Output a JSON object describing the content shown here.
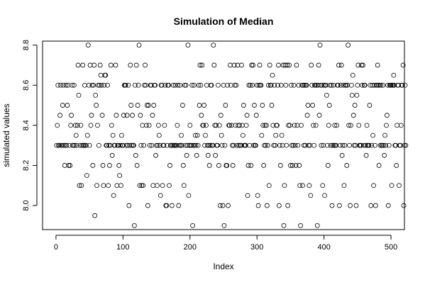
{
  "chart_data": {
    "type": "scatter",
    "title": "Simulation of Median",
    "xlabel": "Index",
    "ylabel": "simulated values",
    "xlim": [
      -20,
      520
    ],
    "ylim": [
      7.88,
      8.82
    ],
    "x_ticks": [
      0,
      100,
      200,
      300,
      400,
      500
    ],
    "y_ticks": [
      8.0,
      8.2,
      8.4,
      8.6,
      8.8
    ],
    "y_tick_labels": [
      "8.0",
      "8.2",
      "8.4",
      "8.6",
      "8.8"
    ],
    "grid": false,
    "marker": "open-circle",
    "n_points": 500,
    "series": [
      {
        "y": [
          8.3,
          8.4,
          8.6,
          8.3,
          8.3,
          8.45,
          8.6,
          8.3,
          8.3,
          8.5,
          8.6,
          8.3,
          8.2,
          8.3,
          8.6,
          8.3,
          8.5,
          8.6,
          8.2,
          8.3,
          8.2,
          8.4,
          8.45,
          8.6,
          8.3,
          8.3,
          8.6,
          8.3,
          8.4,
          8.35,
          8.3,
          8.4,
          8.7,
          8.55,
          8.1,
          8.3,
          8.4,
          8.1,
          8.3,
          8.7,
          8.3,
          8.3,
          8.6,
          8.3,
          8.3,
          8.15,
          8.35,
          8.8,
          8.6,
          8.3,
          8.7,
          8.4,
          8.45,
          8.6,
          8.2,
          8.6,
          8.7,
          7.95,
          8.55,
          8.5,
          8.1,
          8.4,
          8.6,
          8.3,
          8.6,
          8.7,
          8.65,
          8.6,
          8.45,
          8.2,
          8.1,
          8.6,
          8.65,
          8.65,
          8.3,
          8.3,
          8.6,
          8.1,
          8.3,
          8.2,
          8.3,
          8.7,
          8.4,
          8.25,
          8.35,
          8.05,
          8.3,
          8.3,
          8.7,
          8.45,
          8.1,
          8.3,
          8.3,
          8.2,
          8.15,
          8.3,
          8.1,
          8.35,
          8.3,
          8.3,
          8.45,
          8.6,
          8.6,
          8.6,
          8.3,
          8.45,
          8.3,
          8.6,
          8.0,
          8.3,
          8.7,
          8.5,
          8.3,
          8.45,
          8.3,
          8.3,
          7.9,
          8.6,
          8.25,
          8.7,
          8.2,
          8.5,
          8.6,
          8.8,
          8.1,
          8.45,
          8.3,
          8.1,
          8.4,
          8.1,
          8.3,
          8.6,
          8.7,
          8.6,
          8.4,
          8.5,
          8.0,
          8.5,
          8.4,
          8.3,
          8.6,
          8.6,
          8.3,
          8.45,
          8.1,
          8.5,
          8.6,
          8.6,
          8.25,
          8.3,
          8.1,
          8.3,
          8.4,
          8.35,
          8.3,
          8.05,
          8.6,
          8.6,
          8.1,
          8.3,
          8.3,
          8.4,
          8.6,
          8.0,
          8.0,
          8.3,
          8.6,
          8.6,
          8.1,
          8.2,
          8.3,
          8.3,
          8.0,
          8.3,
          8.6,
          8.3,
          8.3,
          8.6,
          8.3,
          8.3,
          8.4,
          8.6,
          8.0,
          8.3,
          8.6,
          8.3,
          8.35,
          8.3,
          8.5,
          8.2,
          8.1,
          8.6,
          8.3,
          8.6,
          8.25,
          8.3,
          8.8,
          8.05,
          8.3,
          8.4,
          8.3,
          8.3,
          8.6,
          7.9,
          8.3,
          8.6,
          8.3,
          8.35,
          8.3,
          8.25,
          8.35,
          8.3,
          8.6,
          8.5,
          8.7,
          8.6,
          8.45,
          8.7,
          8.4,
          8.4,
          8.5,
          8.3,
          8.35,
          8.4,
          8.6,
          8.3,
          8.25,
          8.3,
          8.2,
          8.3,
          8.6,
          8.6,
          8.3,
          8.3,
          8.8,
          8.7,
          8.4,
          8.25,
          8.4,
          8.3,
          8.3,
          8.6,
          8.2,
          8.4,
          8.0,
          8.45,
          8.35,
          8.3,
          8.0,
          8.6,
          7.9,
          8.3,
          8.5,
          8.2,
          8.2,
          8.6,
          8.0,
          8.4,
          8.4,
          8.7,
          8.6,
          8.4,
          8.3,
          8.2,
          8.3,
          8.7,
          8.6,
          8.4,
          8.6,
          8.3,
          8.7,
          8.4,
          8.3,
          8.4,
          8.3,
          8.3,
          8.7,
          8.4,
          8.35,
          8.5,
          8.3,
          8.3,
          8.3,
          8.4,
          8.45,
          8.05,
          8.2,
          8.6,
          8.3,
          8.6,
          8.2,
          8.7,
          8.6,
          8.7,
          8.3,
          8.5,
          8.3,
          8.3,
          8.45,
          8.6,
          8.05,
          8.0,
          8.6,
          8.7,
          8.6,
          8.6,
          8.35,
          8.5,
          8.4,
          8.2,
          8.3,
          8.4,
          8.3,
          8.4,
          8.0,
          8.3,
          8.6,
          8.1,
          8.7,
          8.6,
          8.6,
          8.5,
          8.65,
          8.4,
          8.3,
          8.6,
          8.3,
          8.35,
          8.4,
          8.4,
          8.6,
          8.7,
          8.0,
          8.3,
          8.2,
          8.6,
          8.35,
          8.3,
          8.7,
          7.9,
          8.1,
          8.7,
          8.6,
          8.3,
          8.7,
          8.0,
          8.4,
          8.7,
          8.4,
          8.2,
          8.6,
          8.3,
          8.2,
          8.3,
          8.6,
          8.4,
          8.3,
          8.2,
          8.7,
          8.4,
          8.3,
          8.6,
          8.2,
          8.1,
          7.9,
          8.4,
          8.6,
          8.1,
          8.6,
          8.3,
          8.6,
          8.3,
          8.6,
          8.6,
          8.45,
          8.5,
          8.3,
          8.1,
          8.3,
          8.05,
          8.7,
          8.6,
          8.5,
          8.4,
          8.3,
          8.6,
          8.6,
          8.4,
          8.6,
          7.9,
          8.6,
          8.7,
          8.45,
          8.8,
          8.6,
          8.3,
          8.6,
          8.1,
          8.3,
          8.6,
          8.05,
          8.6,
          8.6,
          8.55,
          8.3,
          8.2,
          8.4,
          8.5,
          8.6,
          8.3,
          8.6,
          8.0,
          8.3,
          8.6,
          8.3,
          8.4,
          8.3,
          8.3,
          8.4,
          8.6,
          8.6,
          8.7,
          8.0,
          8.3,
          8.6,
          8.7,
          8.25,
          8.3,
          8.6,
          8.1,
          8.3,
          8.6,
          8.6,
          8.2,
          8.6,
          8.8,
          8.4,
          8.3,
          8.0,
          8.4,
          8.6,
          8.55,
          8.65,
          8.45,
          8.3,
          8.5,
          8.3,
          8.0,
          8.55,
          8.6,
          8.7,
          8.4,
          8.3,
          8.3,
          8.3,
          8.7,
          8.6,
          8.7,
          8.3,
          8.6,
          8.6,
          8.3,
          8.25,
          8.4,
          8.3,
          8.3,
          8.3,
          8.5,
          8.6,
          8.0,
          8.3,
          8.6,
          8.35,
          8.1,
          8.6,
          8.3,
          8.0,
          8.6,
          8.6,
          8.7,
          8.6,
          8.2,
          8.6,
          8.3,
          8.6,
          8.3,
          8.3,
          8.6,
          8.3,
          8.25,
          8.35,
          8.3,
          8.4,
          8.45,
          8.6,
          8.0,
          8.3,
          8.6,
          8.6,
          8.6,
          8.1,
          8.6,
          8.6,
          8.65,
          8.6,
          8.3,
          8.3,
          8.2,
          8.4,
          8.6,
          8.6,
          8.1,
          8.3,
          8.3,
          8.4,
          8.6,
          8.6,
          8.7,
          8.0,
          8.3,
          8.6,
          8.3
        ]
      }
    ]
  }
}
